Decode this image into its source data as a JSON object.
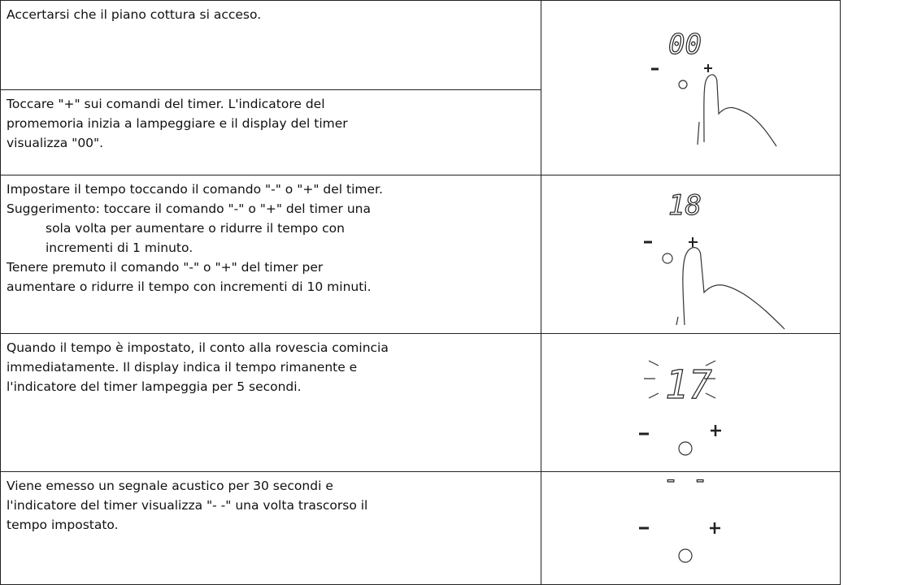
{
  "rows": [
    {
      "left": [
        {
          "paragraphs": [
            {
              "lines": [
                "Accertarsi che il piano cottura si acceso."
              ]
            }
          ]
        },
        {
          "paragraphs": [
            {
              "lines": [
                "Toccare \"+\" sui comandi del timer. L'indicatore del",
                "promemoria inizia a lampeggiare e il display del timer",
                "visualizza \"00\"."
              ]
            }
          ]
        }
      ],
      "display": "00"
    },
    {
      "left": [
        {
          "paragraphs": [
            {
              "lines": [
                "Impostare il tempo toccando il comando \"-\" o \"+\" del timer."
              ]
            },
            {
              "lines": [
                "Suggerimento: toccare il comando \"-\" o \"+\" del timer una",
                "sola volta per aumentare o ridurre il tempo con",
                "incrementi di 1 minuto."
              ]
            },
            {
              "lines": [
                "Tenere premuto il comando \"-\" o \"+\" del timer per",
                "aumentare o ridurre il tempo con incrementi di 10 minuti."
              ]
            }
          ]
        }
      ],
      "display": "18"
    },
    {
      "left": [
        {
          "paragraphs": [
            {
              "lines": [
                "Quando il tempo è impostato, il conto alla rovescia comincia",
                "immediatamente. Il display indica il tempo rimanente e",
                "l'indicatore del timer lampeggia per 5 secondi."
              ]
            }
          ]
        }
      ],
      "display": "17"
    },
    {
      "left": [
        {
          "paragraphs": [
            {
              "lines": [
                "Viene emesso un segnale acustico per 30 secondi e",
                "l'indicatore del timer visualizza \"- -\" una volta trascorso il",
                "tempo impostato."
              ]
            }
          ]
        }
      ],
      "display": "- -"
    }
  ]
}
